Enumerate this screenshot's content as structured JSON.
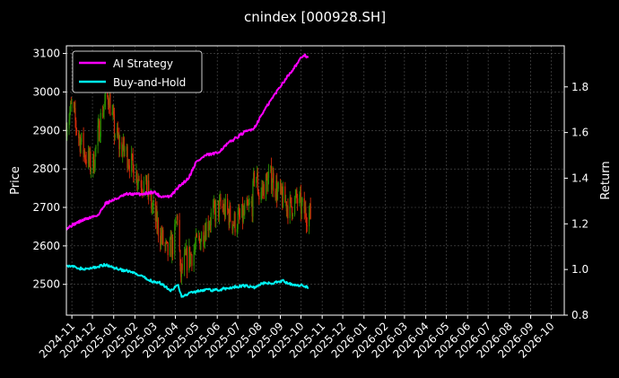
{
  "chart_data": {
    "type": "line",
    "title": "cnindex [000928.SH]",
    "ylabel_left": "Price",
    "ylabel_right": "Return",
    "grid": true,
    "legend_position": "top-left",
    "x_range": [
      "2024-10-24",
      "2026-10-20"
    ],
    "x_tick_labels": [
      "2024-11",
      "2024-12",
      "2025-01",
      "2025-02",
      "2025-03",
      "2025-04",
      "2025-05",
      "2025-06",
      "2025-07",
      "2025-08",
      "2025-09",
      "2025-10",
      "2025-11",
      "2025-12",
      "2026-01",
      "2026-02",
      "2026-03",
      "2026-04",
      "2026-05",
      "2026-06",
      "2026-07",
      "2026-08",
      "2026-09",
      "2026-10"
    ],
    "y_left": {
      "range": [
        2420,
        3120
      ],
      "ticks": [
        2500,
        2600,
        2700,
        2800,
        2900,
        3000,
        3100
      ]
    },
    "y_right": {
      "range": [
        0.8,
        1.98
      ],
      "ticks": [
        "0.8",
        "1.0",
        "1.2",
        "1.4",
        "1.6",
        "1.8"
      ]
    },
    "colors": {
      "up": "#2a8a00",
      "down": "#d42b0a",
      "ai": "#ff00ff",
      "bh": "#00f2f2",
      "bg": "#000000",
      "grid": "#555555"
    },
    "price_keypoints": [
      [
        "2024-10-24",
        2920
      ],
      [
        "2024-11-01",
        2960
      ],
      [
        "2024-11-10",
        2890
      ],
      [
        "2024-11-20",
        2840
      ],
      [
        "2024-12-01",
        2800
      ],
      [
        "2024-12-15",
        2950
      ],
      [
        "2024-12-25",
        2990
      ],
      [
        "2025-01-02",
        2900
      ],
      [
        "2025-01-10",
        2860
      ],
      [
        "2025-01-20",
        2840
      ],
      [
        "2025-02-01",
        2790
      ],
      [
        "2025-02-10",
        2770
      ],
      [
        "2025-02-20",
        2740
      ],
      [
        "2025-03-01",
        2680
      ],
      [
        "2025-03-10",
        2630
      ],
      [
        "2025-03-20",
        2580
      ],
      [
        "2025-03-30",
        2610
      ],
      [
        "2025-04-05",
        2700
      ],
      [
        "2025-04-08",
        2520
      ],
      [
        "2025-04-15",
        2560
      ],
      [
        "2025-04-25",
        2580
      ],
      [
        "2025-05-05",
        2610
      ],
      [
        "2025-05-15",
        2650
      ],
      [
        "2025-05-25",
        2680
      ],
      [
        "2025-06-05",
        2700
      ],
      [
        "2025-06-15",
        2690
      ],
      [
        "2025-06-25",
        2660
      ],
      [
        "2025-07-05",
        2670
      ],
      [
        "2025-07-15",
        2690
      ],
      [
        "2025-07-22",
        2710
      ],
      [
        "2025-07-26",
        2810
      ],
      [
        "2025-08-01",
        2730
      ],
      [
        "2025-08-10",
        2760
      ],
      [
        "2025-08-20",
        2780
      ],
      [
        "2025-08-28",
        2740
      ],
      [
        "2025-09-05",
        2720
      ],
      [
        "2025-09-15",
        2700
      ],
      [
        "2025-09-25",
        2720
      ],
      [
        "2025-10-05",
        2690
      ],
      [
        "2025-10-15",
        2680
      ]
    ],
    "series": [
      {
        "name": "AI Strategy",
        "points": [
          [
            "2024-10-24",
            1.18
          ],
          [
            "2024-11-05",
            1.2
          ],
          [
            "2024-11-20",
            1.22
          ],
          [
            "2024-12-10",
            1.24
          ],
          [
            "2024-12-20",
            1.29
          ],
          [
            "2025-01-05",
            1.31
          ],
          [
            "2025-01-20",
            1.33
          ],
          [
            "2025-02-10",
            1.33
          ],
          [
            "2025-03-01",
            1.34
          ],
          [
            "2025-03-10",
            1.32
          ],
          [
            "2025-03-25",
            1.32
          ],
          [
            "2025-04-05",
            1.36
          ],
          [
            "2025-04-20",
            1.4
          ],
          [
            "2025-05-01",
            1.47
          ],
          [
            "2025-05-15",
            1.5
          ],
          [
            "2025-06-01",
            1.51
          ],
          [
            "2025-06-20",
            1.56
          ],
          [
            "2025-07-10",
            1.6
          ],
          [
            "2025-07-25",
            1.62
          ],
          [
            "2025-08-05",
            1.68
          ],
          [
            "2025-08-20",
            1.75
          ],
          [
            "2025-09-05",
            1.82
          ],
          [
            "2025-09-20",
            1.88
          ],
          [
            "2025-10-05",
            1.94
          ],
          [
            "2025-10-12",
            1.93
          ]
        ]
      },
      {
        "name": "Buy-and-Hold",
        "points": [
          [
            "2024-10-24",
            1.02
          ],
          [
            "2024-11-05",
            1.01
          ],
          [
            "2024-11-20",
            1.0
          ],
          [
            "2024-12-05",
            1.01
          ],
          [
            "2024-12-20",
            1.02
          ],
          [
            "2025-01-10",
            1.0
          ],
          [
            "2025-01-25",
            0.99
          ],
          [
            "2025-02-10",
            0.97
          ],
          [
            "2025-02-25",
            0.95
          ],
          [
            "2025-03-10",
            0.94
          ],
          [
            "2025-03-25",
            0.91
          ],
          [
            "2025-04-05",
            0.93
          ],
          [
            "2025-04-10",
            0.88
          ],
          [
            "2025-04-25",
            0.9
          ],
          [
            "2025-05-10",
            0.91
          ],
          [
            "2025-06-01",
            0.91
          ],
          [
            "2025-06-20",
            0.92
          ],
          [
            "2025-07-10",
            0.93
          ],
          [
            "2025-07-25",
            0.92
          ],
          [
            "2025-08-05",
            0.94
          ],
          [
            "2025-08-20",
            0.94
          ],
          [
            "2025-09-05",
            0.95
          ],
          [
            "2025-09-20",
            0.93
          ],
          [
            "2025-10-05",
            0.93
          ],
          [
            "2025-10-12",
            0.92
          ]
        ]
      }
    ]
  }
}
